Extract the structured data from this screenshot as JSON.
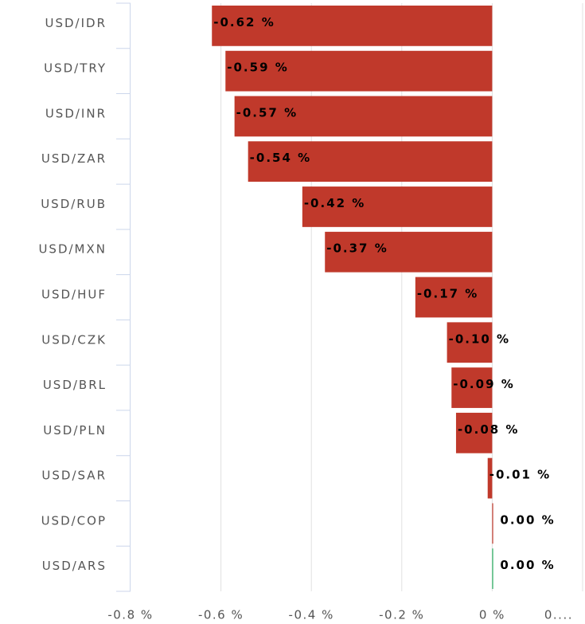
{
  "chart_data": {
    "type": "bar",
    "orientation": "horizontal",
    "categories": [
      "USD/IDR",
      "USD/TRY",
      "USD/INR",
      "USD/ZAR",
      "USD/RUB",
      "USD/MXN",
      "USD/HUF",
      "USD/CZK",
      "USD/BRL",
      "USD/PLN",
      "USD/SAR",
      "USD/COP",
      "USD/ARS"
    ],
    "values": [
      -0.62,
      -0.59,
      -0.57,
      -0.54,
      -0.42,
      -0.37,
      -0.17,
      -0.1,
      -0.09,
      -0.08,
      -0.01,
      0.0,
      0.0
    ],
    "data_labels": [
      "-0.62 %",
      "-0.59 %",
      "-0.57 %",
      "-0.54 %",
      "-0.42 %",
      "-0.37 %",
      "-0.17 %",
      "-0.10 %",
      "-0.09 %",
      "-0.08 %",
      "-0.01 %",
      "0.00 %",
      "0.00 %"
    ],
    "xlim": [
      -0.8,
      0.2
    ],
    "x_ticks": [
      -0.8,
      -0.6,
      -0.4,
      -0.2,
      0,
      0.2
    ],
    "x_tick_labels": [
      "-0.8 %",
      "-0.6 %",
      "-0.4 %",
      "-0.2 %",
      "0 %",
      "0...."
    ],
    "grid": true,
    "colors": {
      "negative": "#c0392b",
      "positive": "#27ae60",
      "grid": "#e0e0e0",
      "axis": "#ccd6eb"
    }
  }
}
